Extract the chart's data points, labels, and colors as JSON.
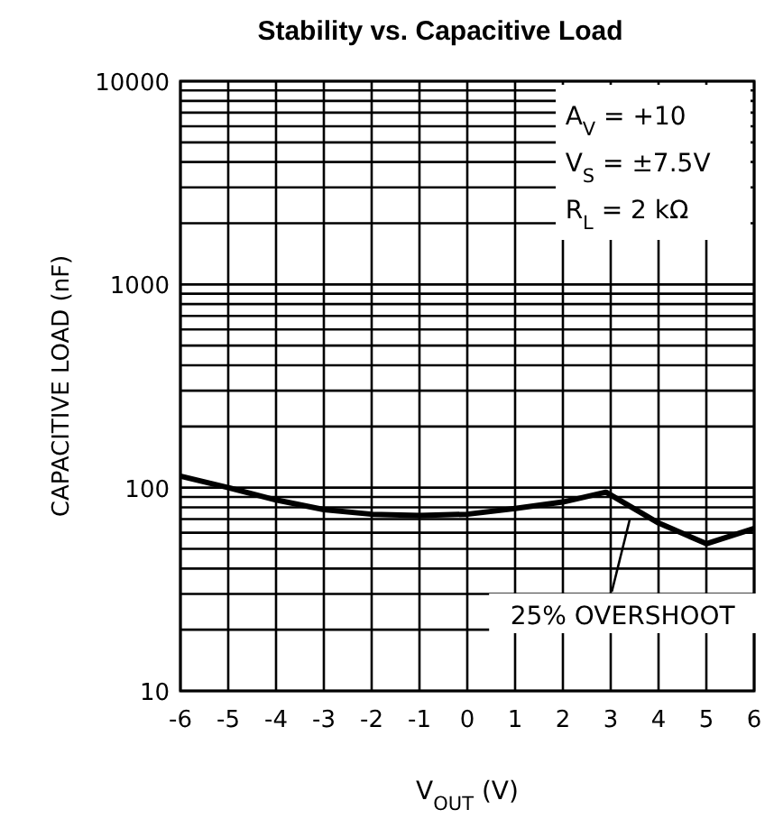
{
  "chart_data": {
    "type": "line",
    "title": "Stability vs. Capacitive Load",
    "xlabel": "V$_{OUT}$ (V)",
    "ylabel": "CAPACITIVE LOAD (nF)",
    "x": [
      -6,
      -5,
      -4,
      -3,
      -2,
      -1,
      0,
      1,
      2,
      2.9,
      4,
      5,
      6
    ],
    "series": [
      {
        "color": "#000000",
        "values": [
          114,
          100,
          87,
          78,
          74,
          73,
          74,
          79,
          85,
          95,
          67,
          53,
          63
        ]
      }
    ],
    "xlim": [
      -6,
      6
    ],
    "xticks": [
      -6,
      -5,
      -4,
      -3,
      -2,
      -1,
      0,
      1,
      2,
      3,
      4,
      5,
      6
    ],
    "ylim": [
      10,
      10000
    ],
    "yticks": [
      10,
      100,
      1000,
      10000
    ],
    "log": true,
    "grid": true,
    "annotations": [
      "A$_{V}$ = +10",
      "V$_{S}$ = ±7.5V",
      "R$_{L}$ = 2 kΩ",
      {
        "text": "25% OVERSHOOT",
        "x": 3.4,
        "y": 76
      }
    ]
  }
}
